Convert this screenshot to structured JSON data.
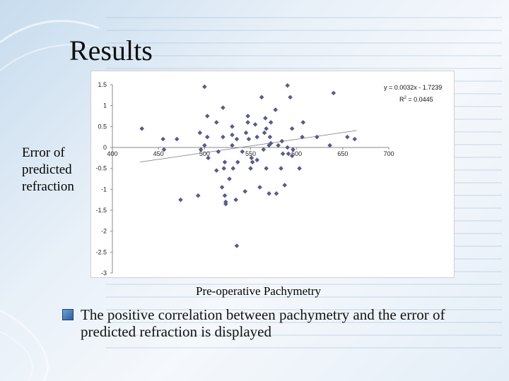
{
  "slide": {
    "title": "Results",
    "y_axis_label": "Error of predicted refraction",
    "x_axis_label": "Pre-operative Pachymetry",
    "bullet_text": "The positive correlation between pachymetry and the error of predicted refraction is displayed"
  },
  "chart_data": {
    "type": "scatter",
    "title": "",
    "xlabel": "Pre-operative Pachymetry",
    "ylabel": "Error of predicted refraction",
    "xlim": [
      400,
      700
    ],
    "ylim": [
      -3,
      1.5
    ],
    "x_ticks": [
      400,
      450,
      500,
      550,
      600,
      650,
      700
    ],
    "y_ticks": [
      1.5,
      1,
      0.5,
      0,
      -0.5,
      -1,
      -1.5,
      -2,
      -2.5,
      -3
    ],
    "trendline": {
      "slope": 0.0032,
      "intercept": -1.7239
    },
    "equation_text": "y = 0.0032x - 1.7239",
    "r2_label": "R",
    "r2_sup": "2",
    "r2_value": " = 0.0445",
    "marker_color": "#5a5a8a",
    "points": [
      [
        500,
        1.45
      ],
      [
        590,
        1.48
      ],
      [
        593,
        1.2
      ],
      [
        562,
        1.2
      ],
      [
        640,
        1.3
      ],
      [
        513,
        0.6
      ],
      [
        547,
        0.6
      ],
      [
        577,
        0.9
      ],
      [
        503,
        0.75
      ],
      [
        520,
        0.95
      ],
      [
        607,
        0.6
      ],
      [
        566,
        0.7
      ],
      [
        547,
        0.75
      ],
      [
        572,
        0.6
      ],
      [
        530,
        0.5
      ],
      [
        555,
        0.55
      ],
      [
        432,
        0.45
      ],
      [
        567,
        0.45
      ],
      [
        495,
        0.35
      ],
      [
        503,
        0.25
      ],
      [
        520,
        0.25
      ],
      [
        530,
        0.3
      ],
      [
        545,
        0.35
      ],
      [
        565,
        0.35
      ],
      [
        571,
        0.25
      ],
      [
        595,
        0.45
      ],
      [
        606,
        0.25
      ],
      [
        655,
        0.25
      ],
      [
        663,
        0.2
      ],
      [
        622,
        0.25
      ],
      [
        636,
        0.05
      ],
      [
        455,
        0.2
      ],
      [
        470,
        0.2
      ],
      [
        500,
        0.05
      ],
      [
        530,
        0.05
      ],
      [
        535,
        0.2
      ],
      [
        548,
        0.2
      ],
      [
        557,
        0.25
      ],
      [
        572,
        0.1
      ],
      [
        580,
        0.05
      ],
      [
        584,
        0.15
      ],
      [
        590,
        0.0
      ],
      [
        456,
        -0.05
      ],
      [
        496,
        -0.05
      ],
      [
        504,
        -0.25
      ],
      [
        515,
        -0.1
      ],
      [
        522,
        -0.35
      ],
      [
        536,
        -0.35
      ],
      [
        541,
        -0.1
      ],
      [
        551,
        -0.25
      ],
      [
        552,
        -0.35
      ],
      [
        557,
        -0.3
      ],
      [
        564,
        -0.05
      ],
      [
        585,
        -0.15
      ],
      [
        595,
        -0.2
      ],
      [
        603,
        -0.5
      ],
      [
        513,
        -0.55
      ],
      [
        521,
        -0.5
      ],
      [
        527,
        -0.75
      ],
      [
        531,
        -0.5
      ],
      [
        550,
        -0.5
      ],
      [
        567,
        -0.5
      ],
      [
        583,
        -0.5
      ],
      [
        587,
        -0.9
      ],
      [
        591,
        -0.15
      ],
      [
        474,
        -1.25
      ],
      [
        493,
        -1.15
      ],
      [
        519,
        -0.95
      ],
      [
        522,
        -1.15
      ],
      [
        523,
        -1.3
      ],
      [
        523,
        -1.35
      ],
      [
        534,
        -1.25
      ],
      [
        544,
        -1.05
      ],
      [
        570,
        -1.1
      ],
      [
        578,
        -1.1
      ],
      [
        560,
        -0.95
      ],
      [
        535,
        -2.35
      ],
      [
        596,
        -0.05
      ],
      [
        570,
        0.05
      ]
    ]
  }
}
